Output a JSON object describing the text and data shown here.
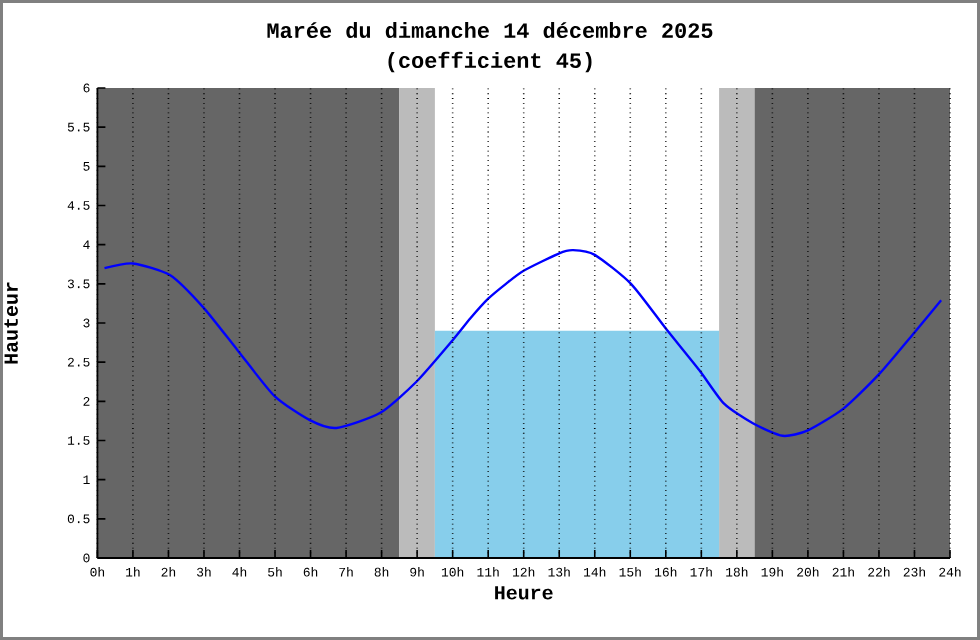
{
  "chart_data": {
    "type": "line",
    "title": "Marée du dimanche 14 décembre 2025",
    "subtitle": "(coefficient 45)",
    "xlabel": "Heure",
    "ylabel": "Hauteur",
    "xlim": [
      0,
      24
    ],
    "ylim": [
      0,
      6
    ],
    "xticks": [
      {
        "value": 0,
        "label": "0h"
      },
      {
        "value": 1,
        "label": "1h"
      },
      {
        "value": 2,
        "label": "2h"
      },
      {
        "value": 3,
        "label": "3h"
      },
      {
        "value": 4,
        "label": "4h"
      },
      {
        "value": 5,
        "label": "5h"
      },
      {
        "value": 6,
        "label": "6h"
      },
      {
        "value": 7,
        "label": "7h"
      },
      {
        "value": 8,
        "label": "8h"
      },
      {
        "value": 9,
        "label": "9h"
      },
      {
        "value": 10,
        "label": "10h"
      },
      {
        "value": 11,
        "label": "11h"
      },
      {
        "value": 12,
        "label": "12h"
      },
      {
        "value": 13,
        "label": "13h"
      },
      {
        "value": 14,
        "label": "14h"
      },
      {
        "value": 15,
        "label": "15h"
      },
      {
        "value": 16,
        "label": "16h"
      },
      {
        "value": 17,
        "label": "17h"
      },
      {
        "value": 18,
        "label": "18h"
      },
      {
        "value": 19,
        "label": "19h"
      },
      {
        "value": 20,
        "label": "20h"
      },
      {
        "value": 21,
        "label": "21h"
      },
      {
        "value": 22,
        "label": "22h"
      },
      {
        "value": 23,
        "label": "23h"
      },
      {
        "value": 24,
        "label": "24h"
      }
    ],
    "yticks": [
      0,
      0.5,
      1,
      1.5,
      2,
      2.5,
      3,
      3.5,
      4,
      4.5,
      5,
      5.5,
      6
    ],
    "grid": "x",
    "bands": [
      {
        "axis": "x",
        "from": 0,
        "to": 8.5,
        "color": "#666666"
      },
      {
        "axis": "x",
        "from": 8.5,
        "to": 9.5,
        "color": "#bbbbbb"
      },
      {
        "axis": "x",
        "from": 17.5,
        "to": 18.5,
        "color": "#bbbbbb"
      },
      {
        "axis": "x",
        "from": 18.5,
        "to": 24,
        "color": "#666666"
      }
    ],
    "series": [
      {
        "type": "area",
        "color": "#87ceeb",
        "x": [
          9.5,
          17.5
        ],
        "values": [
          2.9,
          2.9
        ]
      },
      {
        "color": "#0000ff",
        "x": [
          0.2,
          1.0,
          2.05,
          2.98,
          3.95,
          4.98,
          5.98,
          6.73,
          7.95,
          8.98,
          10.0,
          10.5,
          11.0,
          11.5,
          12.01,
          13.0,
          13.39,
          14.0,
          15.02,
          16.0,
          16.94,
          17.64,
          18.45,
          19.29,
          20.0,
          21.01,
          22.01,
          23.0,
          23.75
        ],
        "values": [
          3.7,
          3.76,
          3.61,
          3.2,
          2.65,
          2.07,
          1.76,
          1.66,
          1.85,
          2.25,
          2.78,
          3.06,
          3.31,
          3.5,
          3.67,
          3.89,
          3.93,
          3.87,
          3.5,
          2.93,
          2.4,
          1.97,
          1.72,
          1.56,
          1.63,
          1.91,
          2.35,
          2.88,
          3.29
        ]
      }
    ]
  }
}
